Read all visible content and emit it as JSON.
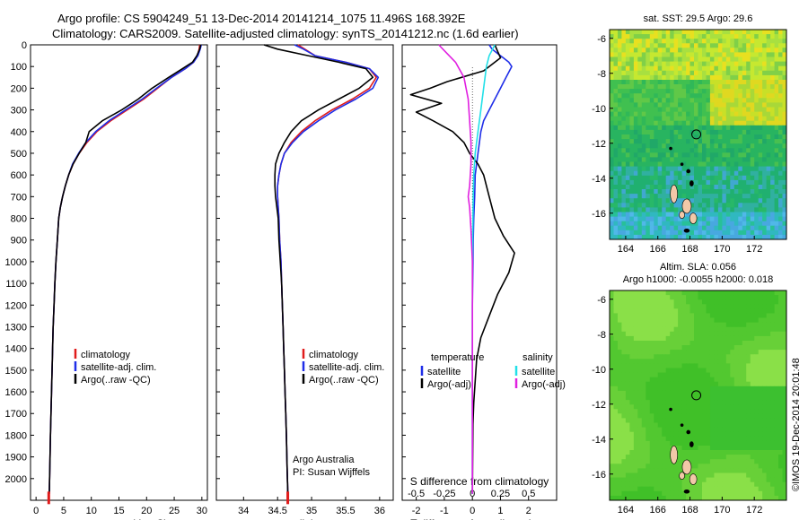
{
  "header": {
    "line1": "Argo profile: CS 5904249_51 13-Dec-2014 20141214_1075 11.496S 168.392E",
    "line2": "Climatology: CARS2009. Satellite-adjusted climatology: synTS_20141212.nc (1.6d earlier)"
  },
  "colors": {
    "climatology": "#e01b1b",
    "satellite": "#1f2ee8",
    "argo": "#000000",
    "salinity_sat": "#22e0e8",
    "salinity_argo": "#e020e0"
  },
  "chart_data": [
    {
      "type": "line",
      "xlabel": "temperature (deg C)",
      "ylim": [
        2100,
        0
      ],
      "xlim": [
        -1,
        31
      ],
      "xticks": [
        0,
        5,
        10,
        15,
        20,
        25,
        30
      ],
      "yticks": [
        0,
        100,
        200,
        300,
        400,
        500,
        600,
        700,
        800,
        900,
        1000,
        1100,
        1200,
        1300,
        1400,
        1500,
        1600,
        1700,
        1800,
        1900,
        2000
      ],
      "legend": [
        "climatology",
        "satellite-adj. clim.",
        "Argo(..raw -QC)"
      ],
      "series": [
        {
          "x": [
            29.6,
            29.5,
            29.2,
            28.5,
            27.0,
            24.5,
            22.0,
            19.5,
            16.5,
            13.5,
            11.0,
            9.2,
            7.8,
            6.7,
            5.9,
            5.3,
            4.8,
            4.4,
            4.1,
            3.85,
            3.6,
            3.4,
            3.25,
            3.1,
            3.0,
            2.9,
            2.8,
            2.7,
            2.6,
            2.5,
            2.4
          ],
          "y": [
            0,
            20,
            50,
            80,
            110,
            150,
            200,
            250,
            300,
            350,
            400,
            450,
            500,
            550,
            600,
            650,
            700,
            750,
            800,
            900,
            1000,
            1100,
            1200,
            1300,
            1400,
            1500,
            1600,
            1700,
            1800,
            1950,
            2070
          ]
        },
        {
          "x": [
            29.9,
            29.7,
            29.3,
            28.5,
            27.0,
            24.5,
            21.8,
            19.2,
            16.2,
            13.2,
            10.8,
            9.0,
            7.7,
            6.6,
            5.9,
            5.3,
            4.8,
            4.4,
            4.1,
            3.85,
            3.6,
            3.4,
            3.25,
            3.1,
            3.0,
            2.9,
            2.8,
            2.7,
            2.6,
            2.5,
            2.4
          ],
          "y": [
            0,
            20,
            50,
            80,
            110,
            150,
            200,
            250,
            300,
            350,
            400,
            450,
            500,
            550,
            600,
            650,
            700,
            750,
            800,
            900,
            1000,
            1100,
            1200,
            1300,
            1400,
            1500,
            1600,
            1700,
            1800,
            1950,
            2070
          ]
        },
        {
          "x": [
            29.8,
            29.6,
            29.1,
            28.3,
            26.5,
            24.0,
            21.0,
            18.5,
            15.5,
            12.0,
            9.6,
            9.0,
            7.8,
            6.7,
            5.9,
            5.3,
            4.8,
            4.4,
            4.1,
            3.85,
            3.6,
            3.4,
            3.25,
            3.1,
            3.0,
            2.9,
            2.8,
            2.7,
            2.6,
            2.5,
            2.4
          ],
          "y": [
            0,
            20,
            50,
            80,
            110,
            150,
            200,
            250,
            300,
            350,
            400,
            450,
            500,
            550,
            600,
            650,
            700,
            750,
            800,
            900,
            1000,
            1100,
            1200,
            1300,
            1400,
            1500,
            1600,
            1700,
            1800,
            1950,
            2070
          ]
        }
      ]
    },
    {
      "type": "line",
      "xlabel": "salinity",
      "ylim": [
        2100,
        0
      ],
      "xlim": [
        33.6,
        36.2
      ],
      "xticks": [
        34,
        34.5,
        35,
        35.5,
        36
      ],
      "legend": [
        "climatology",
        "satellite-adj. clim.",
        "Argo(..raw -QC)"
      ],
      "annotation": [
        "Argo Australia",
        "PI: Susan Wijffels"
      ],
      "series": [
        {
          "x": [
            34.8,
            34.9,
            35.05,
            35.5,
            35.85,
            35.95,
            35.85,
            35.6,
            35.3,
            35.05,
            34.85,
            34.7,
            34.6,
            34.55,
            34.52,
            34.5,
            34.5,
            34.51,
            34.52,
            34.53,
            34.55,
            34.56,
            34.57,
            34.58,
            34.59,
            34.6,
            34.61,
            34.62,
            34.63,
            34.64,
            34.65
          ],
          "y": [
            0,
            20,
            50,
            80,
            110,
            150,
            200,
            250,
            300,
            350,
            400,
            450,
            500,
            550,
            600,
            650,
            700,
            750,
            800,
            900,
            1000,
            1100,
            1200,
            1300,
            1400,
            1500,
            1600,
            1700,
            1800,
            1950,
            2070
          ]
        },
        {
          "x": [
            34.75,
            34.88,
            35.05,
            35.5,
            35.85,
            35.98,
            35.9,
            35.65,
            35.35,
            35.1,
            34.88,
            34.72,
            34.6,
            34.55,
            34.52,
            34.5,
            34.5,
            34.51,
            34.52,
            34.53,
            34.55,
            34.56,
            34.57,
            34.58,
            34.59,
            34.6,
            34.61,
            34.62,
            34.63,
            34.64,
            34.65
          ],
          "y": [
            0,
            20,
            50,
            80,
            110,
            150,
            200,
            250,
            300,
            350,
            400,
            450,
            500,
            550,
            600,
            650,
            700,
            750,
            800,
            900,
            1000,
            1100,
            1200,
            1300,
            1400,
            1500,
            1600,
            1700,
            1800,
            1950,
            2070
          ]
        },
        {
          "x": [
            34.3,
            34.5,
            34.95,
            35.4,
            35.8,
            35.9,
            35.7,
            35.4,
            35.1,
            34.85,
            34.7,
            34.6,
            34.52,
            34.47,
            34.46,
            34.46,
            34.47,
            34.49,
            34.51,
            34.52,
            34.54,
            34.56,
            34.57,
            34.58,
            34.59,
            34.6,
            34.61,
            34.62,
            34.63,
            34.64,
            34.65
          ],
          "y": [
            0,
            20,
            50,
            80,
            110,
            150,
            200,
            250,
            300,
            350,
            400,
            450,
            500,
            550,
            600,
            650,
            700,
            750,
            800,
            900,
            1000,
            1100,
            1200,
            1300,
            1400,
            1500,
            1600,
            1700,
            1800,
            1950,
            2070
          ]
        }
      ]
    },
    {
      "type": "line",
      "xlabel": "T difference from climatology",
      "xlabel_top": "S difference from climatology",
      "ylim": [
        2100,
        0
      ],
      "xlim": [
        -2.5,
        3
      ],
      "xticks": [
        -2,
        -1,
        0,
        1,
        2
      ],
      "xticks_top": [
        "-0.5",
        "-0.25",
        "0",
        "0.25",
        "0.5"
      ],
      "legend_titles": [
        "temperature",
        "salinity"
      ],
      "legend": [
        "satellite",
        "Argo(-adj)",
        "satellite",
        "Argo(-adj)"
      ],
      "series": [
        {
          "x": [
            0.6,
            0.7,
            0.9,
            1.1,
            1.3,
            1.4,
            1.2,
            1.0,
            0.8,
            0.6,
            0.4,
            0.3,
            0.25,
            0.2,
            0.15,
            0.1,
            0.08,
            0.05,
            0.03,
            0.02,
            0.01,
            0,
            0,
            0,
            0,
            0,
            0,
            0,
            0,
            0
          ],
          "y": [
            0,
            20,
            40,
            60,
            80,
            100,
            150,
            200,
            250,
            300,
            350,
            400,
            450,
            500,
            550,
            600,
            700,
            800,
            900,
            1000,
            1100,
            1200,
            1300,
            1400,
            1500,
            1600,
            1700,
            1800,
            1900,
            2070
          ]
        },
        {
          "x": [
            0.8,
            0.9,
            1.0,
            0.7,
            0.4,
            -0.9,
            -1.5,
            -2.2,
            -1.1,
            -2.0,
            -1.4,
            -0.7,
            -0.3,
            -0.1,
            0.2,
            0.4,
            0.6,
            0.8,
            1.1,
            1.5,
            1.3,
            0.9,
            0.6,
            0.3,
            0.15,
            0.1,
            0.05,
            0.02,
            0.01,
            0
          ],
          "y": [
            0,
            30,
            60,
            90,
            120,
            170,
            200,
            230,
            270,
            310,
            350,
            400,
            450,
            500,
            550,
            600,
            700,
            800,
            880,
            960,
            1050,
            1150,
            1250,
            1350,
            1450,
            1550,
            1650,
            1750,
            1900,
            2070
          ]
        },
        {
          "x": [
            0.8,
            0.6,
            0.5,
            0.4,
            0.3,
            0.2,
            0.1,
            0.05,
            0.03,
            0.02,
            0.01,
            0,
            0,
            0,
            0,
            0
          ],
          "y": [
            0,
            50,
            100,
            200,
            300,
            400,
            500,
            600,
            700,
            800,
            900,
            1000,
            1200,
            1400,
            1600,
            2070
          ]
        },
        {
          "x": [
            -1.2,
            -0.9,
            -0.6,
            -0.3,
            -0.15,
            -0.1,
            -0.05,
            -0.05,
            -0.1,
            -0.15,
            -0.1,
            -0.05,
            0,
            0,
            0,
            0
          ],
          "y": [
            0,
            40,
            80,
            150,
            250,
            350,
            450,
            550,
            650,
            700,
            750,
            850,
            1000,
            1200,
            1500,
            2070
          ]
        }
      ]
    },
    {
      "type": "heatmap",
      "title": "sat. SST: 29.5 Argo: 29.6",
      "xlim": [
        163,
        174
      ],
      "ylim": [
        -17.5,
        -5.5
      ],
      "xticks": [
        164,
        166,
        168,
        170,
        172
      ],
      "yticks": [
        -6,
        -8,
        -10,
        -12,
        -14,
        -16
      ],
      "marker": {
        "lon": 168.392,
        "lat": -11.496
      }
    },
    {
      "type": "heatmap",
      "title": "Altim. SLA: 0.056",
      "subtitle": "Argo h1000: -0.0055 h2000: 0.018",
      "xlim": [
        163,
        174
      ],
      "ylim": [
        -17.5,
        -5.5
      ],
      "xticks": [
        164,
        166,
        168,
        170,
        172
      ],
      "yticks": [
        -6,
        -8,
        -10,
        -12,
        -14,
        -16
      ],
      "marker": {
        "lon": 168.392,
        "lat": -11.496
      }
    }
  ],
  "footer": {
    "credit": "©IMOS 19-Dec-2014 20:01:48"
  }
}
